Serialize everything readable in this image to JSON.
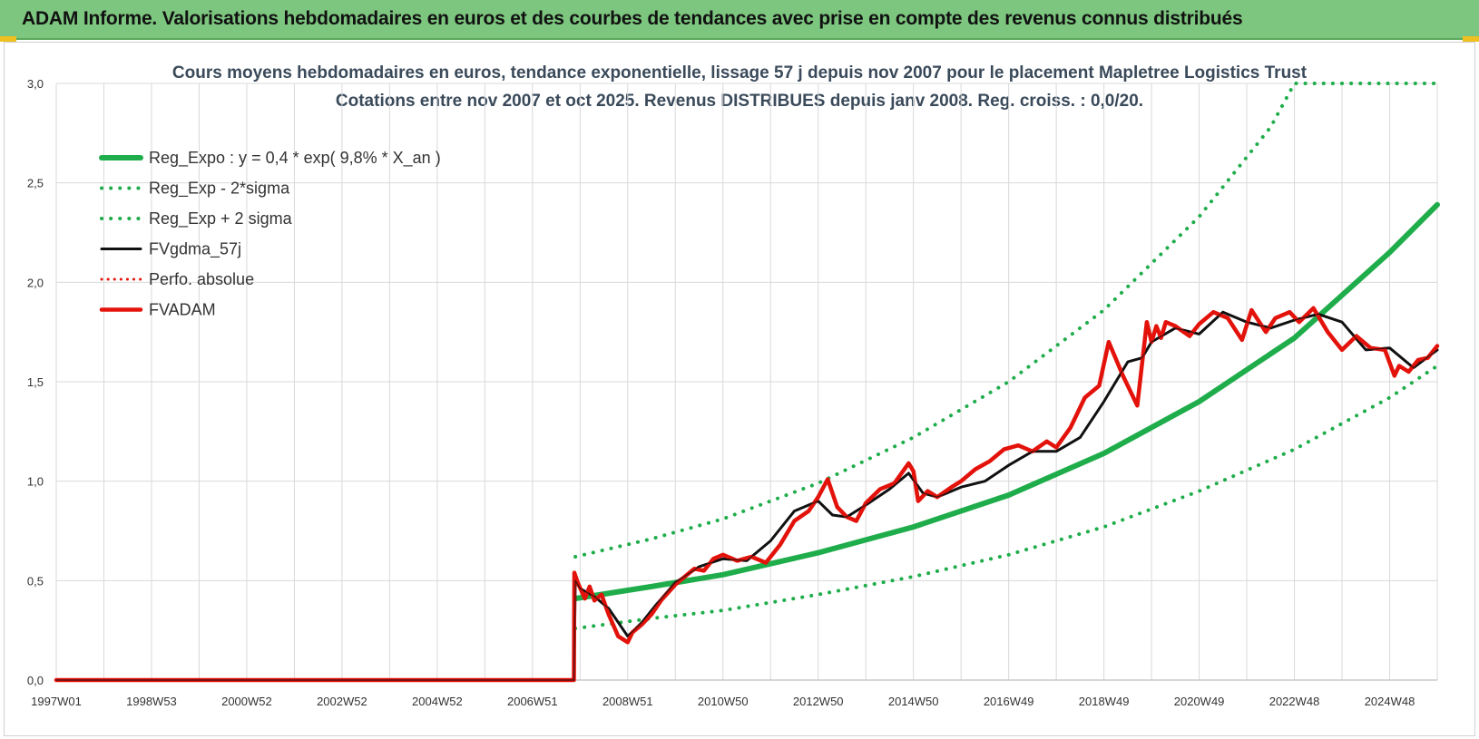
{
  "header": {
    "title": "ADAM Informe. Valorisations hebdomadaires en euros et des courbes de tendances avec prise en compte des revenus connus distribués"
  },
  "colors": {
    "header_bg": "#7dc67f",
    "trend_green": "#1fad4b",
    "series_black": "#111111",
    "series_red": "#e3120b",
    "grid": "#d9d9d9"
  },
  "chart_data": {
    "type": "line",
    "title_lines": [
      "Cours moyens hebdomadaires en euros, tendance exponentielle, lissage 57 j depuis nov 2007 pour le placement Mapletree Logistics Trust",
      "Cotations entre nov 2007 et oct 2025. Revenus DISTRIBUES depuis janv 2008. Reg. croiss. : 0,0/20."
    ],
    "x_ticks": [
      "1997W01",
      "1998W53",
      "2000W52",
      "2002W52",
      "2004W52",
      "2006W51",
      "2008W51",
      "2010W50",
      "2012W50",
      "2014W50",
      "2016W49",
      "2018W49",
      "2020W49",
      "2022W48",
      "2024W48"
    ],
    "x_tick_years": [
      1997.0,
      1999.0,
      2001.0,
      2003.0,
      2005.0,
      2007.0,
      2009.0,
      2011.0,
      2013.0,
      2015.0,
      2017.0,
      2019.0,
      2021.0,
      2023.0,
      2025.0
    ],
    "x_range": [
      1997.0,
      2026.0
    ],
    "y_ticks": [
      "0,0",
      "0,5",
      "1,0",
      "1,5",
      "2,0",
      "2,5",
      "3,0"
    ],
    "ylim": [
      0,
      3
    ],
    "grid": true,
    "legend_position": "top-left",
    "legend": [
      {
        "label": "Reg_Expo : y = 0,4 * exp( 9,8% *  X_an )",
        "style": "solid-green"
      },
      {
        "label": "Reg_Exp - 2*sigma",
        "style": "dotted-green"
      },
      {
        "label": "Reg_Exp + 2 sigma",
        "style": "dotted-green"
      },
      {
        "label": "FVgdma_57j",
        "style": "solid-black"
      },
      {
        "label": "Perfo. absolue",
        "style": "dotted-red"
      },
      {
        "label": "FVADAM",
        "style": "solid-red"
      }
    ],
    "series": [
      {
        "name": "Reg_Expo : y = 0,4 * exp( 9,8% *  X_an )",
        "x": [
          2007.9,
          2009.5,
          2011.0,
          2013.0,
          2015.0,
          2017.0,
          2019.0,
          2021.0,
          2023.0,
          2025.0,
          2026.0
        ],
        "values": [
          0.41,
          0.47,
          0.53,
          0.64,
          0.77,
          0.93,
          1.14,
          1.4,
          1.72,
          2.15,
          2.39
        ]
      },
      {
        "name": "Reg_Exp - 2*sigma",
        "x": [
          2007.9,
          2009.5,
          2011.0,
          2013.0,
          2015.0,
          2017.0,
          2019.0,
          2021.0,
          2023.0,
          2025.0,
          2026.0
        ],
        "values": [
          0.26,
          0.31,
          0.35,
          0.43,
          0.52,
          0.63,
          0.77,
          0.95,
          1.16,
          1.42,
          1.58
        ]
      },
      {
        "name": "Reg_Exp + 2 sigma",
        "x": [
          2007.9,
          2009.5,
          2011.0,
          2013.0,
          2015.0,
          2017.0,
          2019.0,
          2021.0,
          2022.5,
          2023.0,
          2026.0
        ],
        "values": [
          0.62,
          0.71,
          0.81,
          0.99,
          1.22,
          1.5,
          1.86,
          2.33,
          2.78,
          3.0,
          3.0
        ]
      },
      {
        "name": "FVgdma_57j",
        "x": [
          1997.0,
          2007.87,
          2007.9,
          2008.0,
          2008.3,
          2008.6,
          2009.0,
          2009.3,
          2009.6,
          2010.0,
          2010.5,
          2011.0,
          2011.5,
          2012.0,
          2012.5,
          2013.0,
          2013.3,
          2013.6,
          2014.0,
          2014.5,
          2014.9,
          2015.2,
          2015.5,
          2016.0,
          2016.5,
          2017.0,
          2017.5,
          2018.0,
          2018.5,
          2019.0,
          2019.5,
          2019.8,
          2020.0,
          2020.5,
          2021.0,
          2021.5,
          2022.0,
          2022.5,
          2023.0,
          2023.5,
          2024.0,
          2024.5,
          2025.0,
          2025.5,
          2026.0
        ],
        "values": [
          0,
          0,
          0.5,
          0.46,
          0.42,
          0.36,
          0.22,
          0.29,
          0.38,
          0.49,
          0.57,
          0.61,
          0.6,
          0.7,
          0.85,
          0.9,
          0.83,
          0.82,
          0.88,
          0.96,
          1.04,
          0.94,
          0.92,
          0.97,
          1.0,
          1.08,
          1.15,
          1.15,
          1.22,
          1.4,
          1.6,
          1.62,
          1.7,
          1.77,
          1.74,
          1.85,
          1.8,
          1.77,
          1.81,
          1.84,
          1.8,
          1.66,
          1.67,
          1.57,
          1.66
        ]
      },
      {
        "name": "Perfo. absolue",
        "x": [
          1997.0,
          2007.87
        ],
        "values": [
          0,
          0
        ]
      },
      {
        "name": "FVADAM",
        "x": [
          1997.0,
          2007.87,
          2007.88,
          2007.95,
          2008.1,
          2008.2,
          2008.3,
          2008.45,
          2008.6,
          2008.8,
          2009.0,
          2009.1,
          2009.3,
          2009.5,
          2009.7,
          2010.0,
          2010.2,
          2010.4,
          2010.6,
          2010.8,
          2011.0,
          2011.3,
          2011.6,
          2011.9,
          2012.2,
          2012.5,
          2012.8,
          2013.0,
          2013.2,
          2013.4,
          2013.6,
          2013.8,
          2014.0,
          2014.3,
          2014.6,
          2014.9,
          2015.0,
          2015.1,
          2015.3,
          2015.5,
          2015.8,
          2016.0,
          2016.3,
          2016.6,
          2016.9,
          2017.2,
          2017.5,
          2017.8,
          2018.0,
          2018.3,
          2018.6,
          2018.9,
          2019.1,
          2019.4,
          2019.7,
          2019.9,
          2020.0,
          2020.1,
          2020.2,
          2020.3,
          2020.5,
          2020.8,
          2021.0,
          2021.3,
          2021.6,
          2021.9,
          2022.1,
          2022.4,
          2022.6,
          2022.9,
          2023.1,
          2023.4,
          2023.7,
          2024.0,
          2024.3,
          2024.6,
          2024.9,
          2025.1,
          2025.2,
          2025.4,
          2025.6,
          2025.8,
          2026.0
        ],
        "values": [
          0,
          0,
          0.54,
          0.49,
          0.41,
          0.47,
          0.4,
          0.43,
          0.33,
          0.22,
          0.19,
          0.24,
          0.28,
          0.33,
          0.4,
          0.48,
          0.52,
          0.56,
          0.55,
          0.61,
          0.63,
          0.6,
          0.62,
          0.59,
          0.68,
          0.8,
          0.85,
          0.92,
          1.01,
          0.87,
          0.82,
          0.8,
          0.89,
          0.96,
          0.99,
          1.09,
          1.05,
          0.9,
          0.95,
          0.92,
          0.97,
          1.0,
          1.06,
          1.1,
          1.16,
          1.18,
          1.15,
          1.2,
          1.17,
          1.27,
          1.42,
          1.48,
          1.7,
          1.53,
          1.38,
          1.8,
          1.7,
          1.78,
          1.72,
          1.8,
          1.78,
          1.73,
          1.79,
          1.85,
          1.82,
          1.71,
          1.86,
          1.75,
          1.82,
          1.85,
          1.8,
          1.87,
          1.75,
          1.66,
          1.73,
          1.67,
          1.66,
          1.53,
          1.58,
          1.55,
          1.61,
          1.62,
          1.68
        ]
      }
    ]
  }
}
